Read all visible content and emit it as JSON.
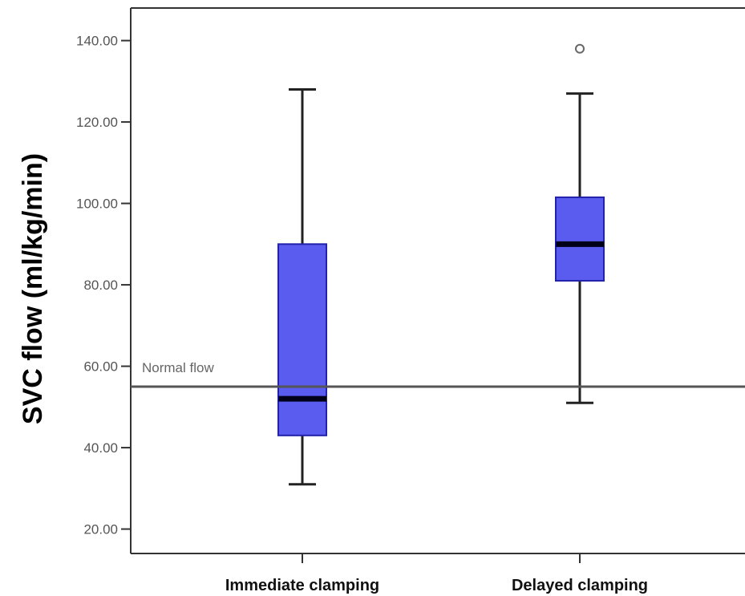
{
  "chart_data": {
    "type": "box",
    "ylabel": "SVC flow (ml/kg/min)",
    "xlabel": "",
    "ylim": [
      14,
      148
    ],
    "yticks": [
      "20.00",
      "40.00",
      "60.00",
      "80.00",
      "100.00",
      "120.00",
      "140.00"
    ],
    "ytick_values": [
      20,
      40,
      60,
      80,
      100,
      120,
      140
    ],
    "categories": [
      "Immediate clamping",
      "Delayed clamping"
    ],
    "boxes": [
      {
        "name": "Immediate clamping",
        "min": 31,
        "q1": 43,
        "median": 52,
        "q3": 90,
        "max": 128,
        "outliers": []
      },
      {
        "name": "Delayed clamping",
        "min": 51,
        "q1": 81,
        "median": 90,
        "q3": 101.5,
        "max": 127,
        "outliers": [
          138
        ]
      }
    ],
    "reference_line": {
      "value": 55,
      "label": "Normal flow"
    },
    "colors": {
      "box_fill": "#5a5cf0",
      "box_stroke": "#2222aa",
      "median": "#000018",
      "whisker": "#222222",
      "reference": "#555555"
    },
    "grid": false
  }
}
